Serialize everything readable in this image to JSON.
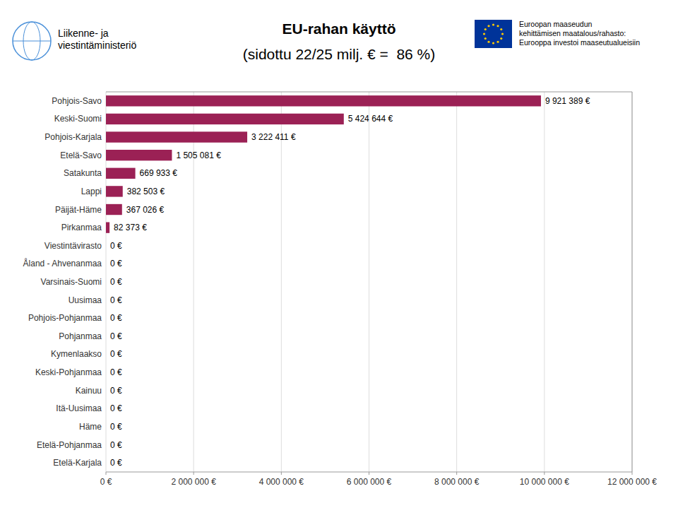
{
  "chart_data": {
    "type": "bar",
    "orientation": "horizontal",
    "title": "EU-rahan käyttö",
    "subtitle": "(sidottu 22/25 milj. € =  86 %)",
    "annotations": [
      "Liikenne- ja",
      "viestintäministeriö",
      "Euroopan maaseudun",
      "kehittämisen maatalous/rahasto:",
      "Eurooppa investoi maaseutualueisiin"
    ],
    "categories": [
      "Pohjois-Savo",
      "Keski-Suomi",
      "Pohjois-Karjala",
      "Etelä-Savo",
      "Satakunta",
      "Lappi",
      "Päijät-Häme",
      "Pirkanmaa",
      "Viestintävirasto",
      "Åland - Ahvenanmaa",
      "Varsinais-Suomi",
      "Uusimaa",
      "Pohjois-Pohjanmaa",
      "Pohjanmaa",
      "Kymenlaakso",
      "Keski-Pohjanmaa",
      "Kainuu",
      "Itä-Uusimaa",
      "Häme",
      "Etelä-Pohjanmaa",
      "Etelä-Karjala"
    ],
    "values": [
      9921389,
      5424644,
      3222411,
      1505081,
      669933,
      382503,
      367026,
      82373,
      0,
      0,
      0,
      0,
      0,
      0,
      0,
      0,
      0,
      0,
      0,
      0,
      0
    ],
    "value_labels": [
      "9 921 389 €",
      "5 424 644 €",
      "3 222 411 €",
      "1 505 081 €",
      "669 933 €",
      "382 503 €",
      "367 026 €",
      "82 373 €",
      "0 €",
      "0 €",
      "0 €",
      "0 €",
      "0 €",
      "0 €",
      "0 €",
      "0 €",
      "0 €",
      "0 €",
      "0 €",
      "0 €",
      "0 €"
    ],
    "color": "#9b2155",
    "xlim": [
      0,
      12000000
    ],
    "xticks": [
      {
        "value": 0,
        "label": "0 €"
      },
      {
        "value": 2000000,
        "label": "2 000 000 €"
      },
      {
        "value": 4000000,
        "label": "4 000 000 €"
      },
      {
        "value": 6000000,
        "label": "6 000 000 €"
      },
      {
        "value": 8000000,
        "label": "8 000 000 €"
      },
      {
        "value": 10000000,
        "label": "10 000 000 €"
      },
      {
        "value": 12000000,
        "label": "12 000 000 €"
      }
    ],
    "grid": true,
    "data_labels": true
  }
}
